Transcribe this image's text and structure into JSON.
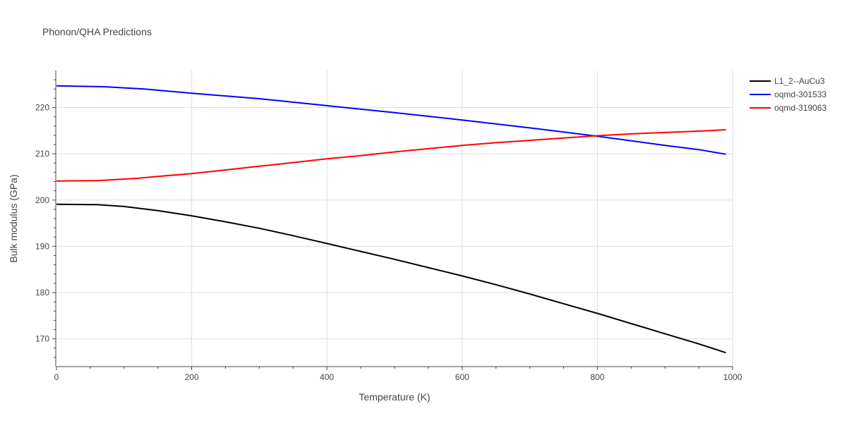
{
  "chart_data": {
    "type": "line",
    "title": "Phonon/QHA Predictions",
    "xlabel": "Temperature (K)",
    "ylabel": "Bulk modulus (GPa)",
    "xlim": [
      0,
      1000
    ],
    "ylim": [
      164,
      228
    ],
    "x_ticks": [
      0,
      200,
      400,
      600,
      800,
      1000
    ],
    "y_ticks": [
      170,
      180,
      190,
      200,
      210,
      220
    ],
    "grid": true,
    "legend_position": "top-right",
    "series": [
      {
        "name": "L1_2--AuCu3",
        "color": "#000000",
        "x": [
          0,
          60,
          100,
          150,
          200,
          250,
          300,
          350,
          400,
          450,
          500,
          550,
          600,
          650,
          700,
          750,
          800,
          850,
          900,
          950,
          990
        ],
        "y": [
          199.1,
          199.0,
          198.6,
          197.7,
          196.6,
          195.3,
          193.9,
          192.3,
          190.6,
          188.9,
          187.2,
          185.4,
          183.6,
          181.7,
          179.7,
          177.6,
          175.5,
          173.3,
          171.1,
          168.9,
          167.0
        ]
      },
      {
        "name": "oqmd-301533",
        "color": "#0000ff",
        "x": [
          0,
          70,
          130,
          200,
          300,
          400,
          500,
          600,
          700,
          800,
          900,
          950,
          990
        ],
        "y": [
          224.7,
          224.5,
          224.0,
          223.1,
          221.9,
          220.4,
          218.9,
          217.3,
          215.6,
          213.8,
          211.8,
          210.9,
          209.9
        ]
      },
      {
        "name": "oqmd-319063",
        "color": "#ff0000",
        "x": [
          0,
          60,
          120,
          150,
          200,
          250,
          300,
          350,
          400,
          450,
          500,
          550,
          600,
          650,
          700,
          750,
          800,
          850,
          900,
          950,
          990
        ],
        "y": [
          204.1,
          204.2,
          204.7,
          205.1,
          205.7,
          206.5,
          207.3,
          208.1,
          208.9,
          209.6,
          210.4,
          211.1,
          211.8,
          212.4,
          212.9,
          213.4,
          213.9,
          214.3,
          214.6,
          214.9,
          215.2
        ]
      }
    ]
  }
}
